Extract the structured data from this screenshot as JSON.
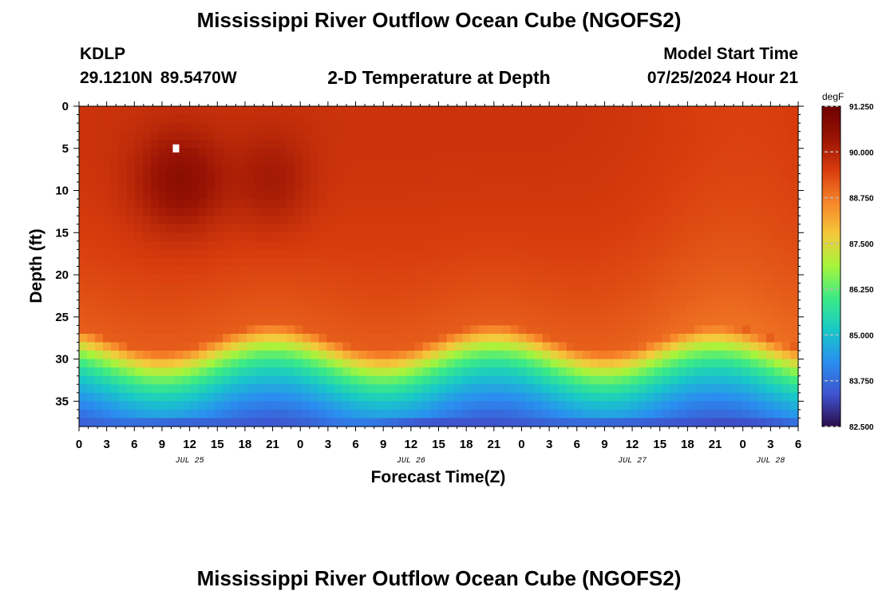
{
  "header": {
    "title": "Mississippi River Outflow Ocean Cube (NGOFS2)",
    "station": "KDLP",
    "coords": "29.1210N 89.5470W",
    "plot_title": "2-D Temperature at Depth",
    "model_start_label": "Model Start Time",
    "model_start_value": "07/25/2024 Hour 21"
  },
  "footer": {
    "title": "Mississippi River Outflow Ocean Cube (NGOFS2)"
  },
  "colors": {
    "colormap": [
      "#2b0d49",
      "#3f53cf",
      "#2a8ef0",
      "#18c8c8",
      "#3bea86",
      "#a4f53c",
      "#f4c93b",
      "#f7852a",
      "#d83c0d",
      "#9a1404",
      "#6d0000"
    ]
  },
  "chart_data": {
    "type": "heatmap",
    "title": "2-D Temperature at Depth",
    "xlabel": "Forecast Time(Z)",
    "ylabel": "Depth (ft)",
    "x_range_hours": [
      0,
      78
    ],
    "x_tick_labels": [
      "0",
      "3",
      "6",
      "9",
      "12",
      "15",
      "18",
      "21",
      "0",
      "3",
      "6",
      "9",
      "12",
      "15",
      "18",
      "21",
      "0",
      "3",
      "6",
      "9",
      "12",
      "15",
      "18",
      "21",
      "0",
      "3",
      "6"
    ],
    "date_labels": [
      {
        "label": "JUL 25",
        "hour": 12
      },
      {
        "label": "JUL 26",
        "hour": 36
      },
      {
        "label": "JUL 27",
        "hour": 60
      },
      {
        "label": "JUL 28",
        "hour": 75
      }
    ],
    "ylim_ft": [
      0,
      38
    ],
    "y_tick_labels": [
      "0",
      "5",
      "10",
      "15",
      "20",
      "25",
      "30",
      "35"
    ],
    "colorbar": {
      "unit": "degF",
      "min": 82.5,
      "max": 91.25,
      "tick_labels": [
        "91.250",
        "90.000",
        "88.750",
        "87.500",
        "86.250",
        "85.000",
        "83.750",
        "82.500"
      ]
    },
    "marker": {
      "hour": 10,
      "depth_ft": 5
    }
  }
}
